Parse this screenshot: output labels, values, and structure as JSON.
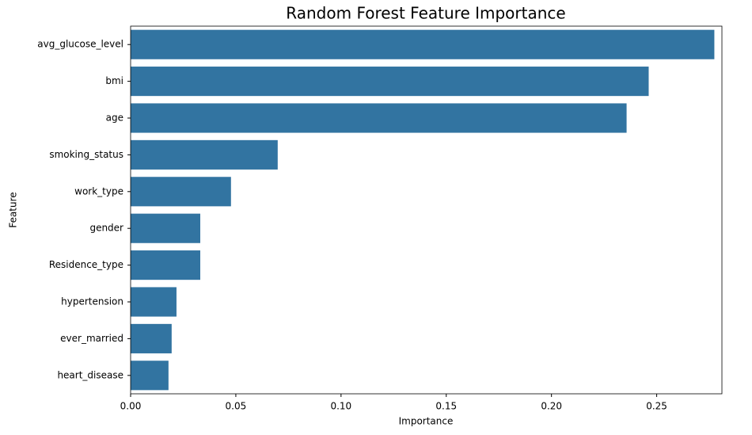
{
  "chart_data": {
    "type": "bar",
    "orientation": "horizontal",
    "title": "Random Forest Feature Importance",
    "x_label": "Importance",
    "y_label": "Feature",
    "categories": [
      "avg_glucose_level",
      "bmi",
      "age",
      "smoking_status",
      "work_type",
      "gender",
      "Residence_type",
      "hypertension",
      "ever_married",
      "heart_disease"
    ],
    "values": [
      0.2774,
      0.2462,
      0.2357,
      0.0699,
      0.0477,
      0.0331,
      0.0331,
      0.0218,
      0.0195,
      0.018
    ],
    "color": "#3274a1",
    "xlim": [
      0,
      0.281
    ],
    "xticks": [
      {
        "value": 0,
        "label": "0.00"
      },
      0.05,
      {
        "value": 0.1,
        "label": "0.10"
      },
      0.15,
      {
        "value": 0.2,
        "label": "0.20"
      },
      0.25
    ]
  }
}
